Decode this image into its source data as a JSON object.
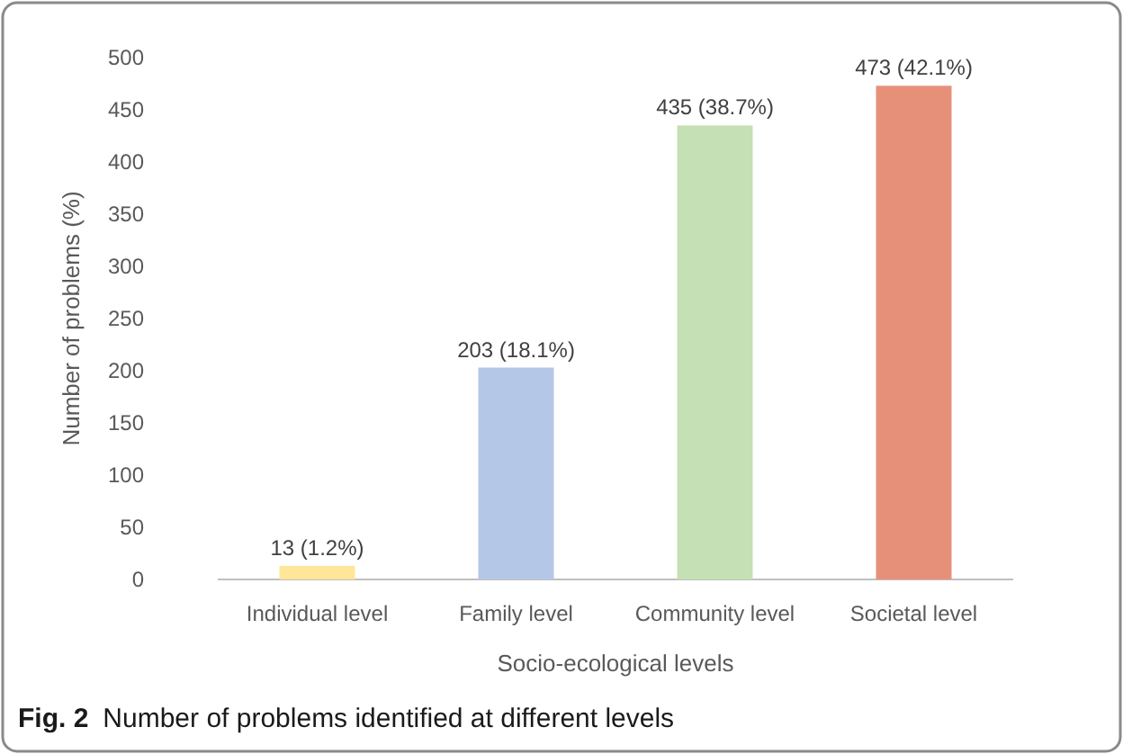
{
  "chart_data": {
    "type": "bar",
    "categories": [
      "Individual level",
      "Family level",
      "Community level",
      "Societal level"
    ],
    "values": [
      13,
      203,
      435,
      473
    ],
    "colors": [
      "#ffe699",
      "#b4c7e7",
      "#c5e0b4",
      "#e6907a"
    ],
    "value_labels": [
      "13 (1.2%)",
      "203 (18.1%)",
      "435 (38.7%)",
      "473 (42.1%)"
    ],
    "ylim": [
      0,
      500
    ],
    "yticks": [
      0,
      50,
      100,
      150,
      200,
      250,
      300,
      350,
      400,
      450,
      500
    ],
    "xlabel": "Socio-ecological levels",
    "ylabel": "Number of problems (%)",
    "annotations": [
      "Fig. 2",
      "Number of problems identified at different levels"
    ],
    "grid": false
  }
}
